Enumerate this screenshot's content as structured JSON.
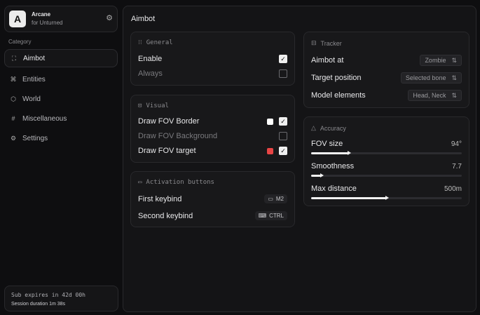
{
  "app": {
    "logo_letter": "A",
    "name": "Arcane",
    "subtitle": "for Unturned"
  },
  "sidebar": {
    "category_label": "Category",
    "items": [
      {
        "label": "Aimbot",
        "icon": "crosshair-icon",
        "active": true
      },
      {
        "label": "Entities",
        "icon": "entities-icon"
      },
      {
        "label": "World",
        "icon": "cube-icon"
      },
      {
        "label": "Miscellaneous",
        "icon": "grid-icon"
      },
      {
        "label": "Settings",
        "icon": "gear-icon"
      }
    ],
    "footer": {
      "sub": "Sub expires in 42d 00h",
      "session": "Session duration 1m 38s"
    }
  },
  "main": {
    "title": "Aimbot",
    "general": {
      "title": "General",
      "rows": [
        {
          "label": "Enable",
          "checked": true
        },
        {
          "label": "Always",
          "checked": false
        }
      ]
    },
    "visual": {
      "title": "Visual",
      "rows": [
        {
          "label": "Draw FOV Border",
          "checked": true,
          "color": "#ffffff"
        },
        {
          "label": "Draw FOV Background",
          "checked": false
        },
        {
          "label": "Draw FOV target",
          "checked": true,
          "color": "#e84545"
        }
      ]
    },
    "activation": {
      "title": "Activation buttons",
      "rows": [
        {
          "label": "First keybind",
          "key": "M2"
        },
        {
          "label": "Second keybind",
          "key": "CTRL"
        }
      ]
    },
    "tracker": {
      "title": "Tracker",
      "rows": [
        {
          "label": "Aimbot at",
          "value": "Zombie"
        },
        {
          "label": "Target position",
          "value": "Selected bone"
        },
        {
          "label": "Model elements",
          "value": "Head, Neck"
        }
      ]
    },
    "accuracy": {
      "title": "Accuracy",
      "sliders": [
        {
          "label": "FOV size",
          "value": "94°",
          "fraction": 0.25
        },
        {
          "label": "Smoothness",
          "value": "7.7",
          "fraction": 0.07
        },
        {
          "label": "Max distance",
          "value": "500m",
          "fraction": 0.5
        }
      ]
    }
  }
}
